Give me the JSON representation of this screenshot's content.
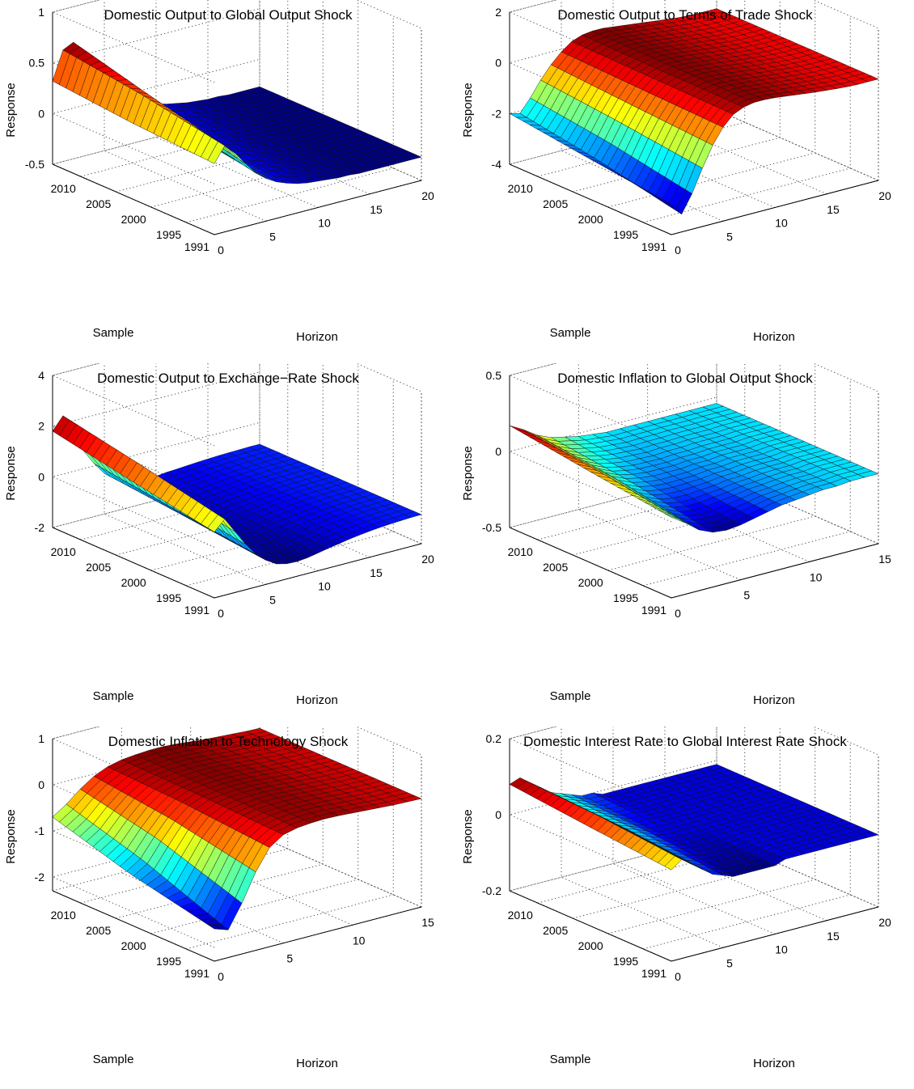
{
  "figure": {
    "panels": [
      {
        "title": "Domestic Output to Global Output Shock",
        "ylabel": "Response",
        "xlabel": "Horizon",
        "slabel": "Sample"
      },
      {
        "title": "Domestic Output to Terms of Trade Shock",
        "ylabel": "Response",
        "xlabel": "Horizon",
        "slabel": "Sample"
      },
      {
        "title": "Domestic Output to Exchange−Rate Shock",
        "ylabel": "Response",
        "xlabel": "Horizon",
        "slabel": "Sample"
      },
      {
        "title": "Domestic Inflation to Global Output Shock",
        "ylabel": "Response",
        "xlabel": "Horizon",
        "slabel": "Sample"
      },
      {
        "title": "Domestic Inflation to Technology Shock",
        "ylabel": "Response",
        "xlabel": "Horizon",
        "slabel": "Sample"
      },
      {
        "title": "Domestic Interest Rate to Global Interest Rate Shock",
        "ylabel": "Response",
        "xlabel": "Horizon",
        "slabel": "Sample"
      }
    ]
  },
  "chart_data": [
    {
      "type": "surface",
      "title": "Domestic Output to Global Output Shock",
      "xlabel": "Horizon",
      "ylabel": "Sample",
      "zlabel": "Response",
      "xlim": [
        0,
        20
      ],
      "xticks": [
        0,
        5,
        10,
        15,
        20
      ],
      "ylim": [
        1991,
        2014
      ],
      "yticks": [
        1991,
        1995,
        2000,
        2005,
        2010
      ],
      "zlim": [
        -0.5,
        1
      ],
      "zticks": [
        -0.5,
        0,
        0.5,
        1
      ],
      "zticklabels": [
        "-0.5",
        "0",
        "0.5",
        "1"
      ],
      "series": [
        {
          "sample": 2014,
          "values": [
            0.32,
            0.6,
            0.65,
            0.55,
            0.4,
            0.25,
            0.12,
            0.02,
            -0.06,
            -0.12,
            -0.17,
            -0.2,
            -0.22,
            -0.24,
            -0.25,
            -0.26,
            -0.26,
            -0.27,
            -0.27,
            -0.27,
            -0.27
          ]
        },
        {
          "sample": 2003,
          "values": [
            0.25,
            0.5,
            0.45,
            0.32,
            0.18,
            0.05,
            -0.05,
            -0.12,
            -0.17,
            -0.2,
            -0.22,
            -0.24,
            -0.25,
            -0.26,
            -0.26,
            -0.27,
            -0.27,
            -0.27,
            -0.27,
            -0.27,
            -0.27
          ]
        },
        {
          "sample": 1991,
          "values": [
            0.2,
            0.35,
            0.25,
            0.12,
            0.0,
            -0.08,
            -0.14,
            -0.18,
            -0.21,
            -0.23,
            -0.24,
            -0.25,
            -0.26,
            -0.26,
            -0.27,
            -0.27,
            -0.27,
            -0.27,
            -0.27,
            -0.27,
            -0.27
          ]
        }
      ]
    },
    {
      "type": "surface",
      "title": "Domestic Output to Terms of Trade Shock",
      "xlabel": "Horizon",
      "ylabel": "Sample",
      "zlabel": "Response",
      "xlim": [
        0,
        20
      ],
      "xticks": [
        0,
        5,
        10,
        15,
        20
      ],
      "ylim": [
        1991,
        2014
      ],
      "yticks": [
        1991,
        1995,
        2000,
        2005,
        2010
      ],
      "zlim": [
        -4,
        2
      ],
      "zticks": [
        -4,
        -2,
        0,
        2
      ],
      "zticklabels": [
        "-4",
        "-2",
        "0",
        "2"
      ],
      "series": [
        {
          "sample": 2014,
          "values": [
            -2.0,
            -2.1,
            -1.6,
            -1.0,
            -0.5,
            -0.1,
            0.2,
            0.35,
            0.4,
            0.4,
            0.35,
            0.3,
            0.25,
            0.2,
            0.15,
            0.1,
            0.05,
            0.02,
            0.0,
            0.0,
            0.0
          ]
        },
        {
          "sample": 2003,
          "values": [
            -2.4,
            -2.6,
            -2.0,
            -1.3,
            -0.7,
            -0.2,
            0.15,
            0.3,
            0.38,
            0.38,
            0.34,
            0.29,
            0.24,
            0.19,
            0.14,
            0.1,
            0.05,
            0.02,
            0.0,
            0.0,
            0.0
          ]
        },
        {
          "sample": 1991,
          "values": [
            -2.8,
            -3.3,
            -2.6,
            -1.7,
            -0.9,
            -0.3,
            0.1,
            0.28,
            0.36,
            0.36,
            0.33,
            0.28,
            0.23,
            0.18,
            0.13,
            0.09,
            0.05,
            0.02,
            0.0,
            0.0,
            0.0
          ]
        }
      ]
    },
    {
      "type": "surface",
      "title": "Domestic Output to Exchange−Rate Shock",
      "xlabel": "Horizon",
      "ylabel": "Sample",
      "zlabel": "Response",
      "xlim": [
        0,
        20
      ],
      "xticks": [
        0,
        5,
        10,
        15,
        20
      ],
      "ylim": [
        1991,
        2014
      ],
      "yticks": [
        1991,
        1995,
        2000,
        2005,
        2010
      ],
      "zlim": [
        -2,
        4
      ],
      "zticks": [
        -2,
        0,
        2,
        4
      ],
      "zticklabels": [
        "-2",
        "0",
        "2",
        "4"
      ],
      "series": [
        {
          "sample": 2014,
          "values": [
            1.8,
            2.3,
            1.5,
            0.7,
            0.1,
            -0.4,
            -0.7,
            -0.9,
            -1.0,
            -1.05,
            -1.05,
            -1.0,
            -0.98,
            -0.95,
            -0.92,
            -0.9,
            -0.88,
            -0.87,
            -0.86,
            -0.85,
            -0.85
          ]
        },
        {
          "sample": 2003,
          "values": [
            1.2,
            1.7,
            1.0,
            0.3,
            -0.3,
            -0.7,
            -1.0,
            -1.15,
            -1.2,
            -1.2,
            -1.15,
            -1.1,
            -1.05,
            -1.0,
            -0.96,
            -0.93,
            -0.9,
            -0.88,
            -0.87,
            -0.86,
            -0.85
          ]
        },
        {
          "sample": 1991,
          "values": [
            0.6,
            1.0,
            0.4,
            -0.2,
            -0.7,
            -1.05,
            -1.3,
            -1.4,
            -1.42,
            -1.38,
            -1.3,
            -1.22,
            -1.15,
            -1.08,
            -1.02,
            -0.97,
            -0.93,
            -0.9,
            -0.88,
            -0.86,
            -0.85
          ]
        }
      ]
    },
    {
      "type": "surface",
      "title": "Domestic Inflation to Global Output Shock",
      "xlabel": "Horizon",
      "ylabel": "Sample",
      "zlabel": "Response",
      "xlim": [
        0,
        15
      ],
      "xticks": [
        0,
        5,
        10,
        15
      ],
      "ylim": [
        1991,
        2014
      ],
      "yticks": [
        1991,
        1995,
        2000,
        2005,
        2010
      ],
      "zlim": [
        -0.5,
        0.5
      ],
      "zticks": [
        -0.5,
        0,
        0.5
      ],
      "zticklabels": [
        "-0.5",
        "0",
        "0.5"
      ],
      "series": [
        {
          "sample": 2014,
          "values": [
            0.17,
            0.12,
            0.06,
            0.02,
            0.0,
            -0.02,
            -0.03,
            -0.04,
            -0.04,
            -0.04,
            -0.04,
            -0.04,
            -0.04,
            -0.04,
            -0.04,
            -0.04
          ]
        },
        {
          "sample": 2003,
          "values": [
            0.1,
            0.06,
            0.0,
            -0.04,
            -0.06,
            -0.07,
            -0.07,
            -0.07,
            -0.06,
            -0.06,
            -0.05,
            -0.05,
            -0.05,
            -0.04,
            -0.04,
            -0.04
          ]
        },
        {
          "sample": 1991,
          "values": [
            0.03,
            -0.03,
            -0.1,
            -0.14,
            -0.15,
            -0.14,
            -0.12,
            -0.1,
            -0.08,
            -0.07,
            -0.06,
            -0.05,
            -0.05,
            -0.04,
            -0.04,
            -0.04
          ]
        }
      ]
    },
    {
      "type": "surface",
      "title": "Domestic Inflation to Technology Shock",
      "xlabel": "Horizon",
      "ylabel": "Sample",
      "zlabel": "Response",
      "xlim": [
        0,
        15
      ],
      "xticks": [
        0,
        5,
        10,
        15
      ],
      "ylim": [
        1991,
        2014
      ],
      "yticks": [
        1991,
        1995,
        2000,
        2005,
        2010
      ],
      "zlim": [
        -2.3,
        1
      ],
      "zticks": [
        -2,
        -1,
        0,
        1
      ],
      "zticklabels": [
        "-2",
        "-1",
        "0",
        "1"
      ],
      "series": [
        {
          "sample": 2014,
          "values": [
            -0.7,
            -0.5,
            -0.25,
            -0.05,
            0.08,
            0.15,
            0.18,
            0.2,
            0.2,
            0.18,
            0.15,
            0.12,
            0.1,
            0.08,
            0.06,
            0.05
          ]
        },
        {
          "sample": 2003,
          "values": [
            -1.2,
            -1.0,
            -0.6,
            -0.25,
            0.0,
            0.12,
            0.16,
            0.18,
            0.18,
            0.16,
            0.14,
            0.11,
            0.09,
            0.07,
            0.06,
            0.05
          ]
        },
        {
          "sample": 1991,
          "values": [
            -1.6,
            -1.7,
            -1.2,
            -0.6,
            -0.15,
            0.05,
            0.12,
            0.15,
            0.16,
            0.15,
            0.13,
            0.11,
            0.09,
            0.07,
            0.06,
            0.05
          ]
        }
      ]
    },
    {
      "type": "surface",
      "title": "Domestic Interest Rate to Global Interest Rate Shock",
      "xlabel": "Horizon",
      "ylabel": "Sample",
      "zlabel": "Response",
      "xlim": [
        0,
        20
      ],
      "xticks": [
        0,
        5,
        10,
        15,
        20
      ],
      "ylim": [
        1991,
        2014
      ],
      "yticks": [
        1991,
        1995,
        2000,
        2005,
        2010
      ],
      "zlim": [
        -0.2,
        0.2
      ],
      "zticks": [
        -0.2,
        0,
        0.2
      ],
      "zticklabels": [
        "-0.2",
        "0",
        "0.2"
      ],
      "series": [
        {
          "sample": 2014,
          "values": [
            0.08,
            0.09,
            0.07,
            0.05,
            0.03,
            0.02,
            0.01,
            0.0,
            0.0,
            -0.01,
            -0.01,
            -0.01,
            -0.01,
            -0.01,
            -0.01,
            -0.01,
            -0.01,
            -0.01,
            -0.01,
            -0.01,
            -0.01
          ]
        },
        {
          "sample": 2003,
          "values": [
            0.06,
            0.08,
            0.06,
            0.04,
            0.02,
            0.01,
            0.0,
            -0.01,
            -0.01,
            -0.01,
            -0.01,
            -0.01,
            -0.01,
            -0.01,
            -0.01,
            -0.01,
            -0.01,
            -0.01,
            -0.01,
            -0.01,
            -0.01
          ]
        },
        {
          "sample": 1991,
          "values": [
            0.04,
            0.06,
            0.04,
            0.02,
            0.0,
            -0.01,
            -0.02,
            -0.02,
            -0.02,
            -0.02,
            -0.02,
            -0.01,
            -0.01,
            -0.01,
            -0.01,
            -0.01,
            -0.01,
            -0.01,
            -0.01,
            -0.01,
            -0.01
          ]
        }
      ]
    }
  ]
}
